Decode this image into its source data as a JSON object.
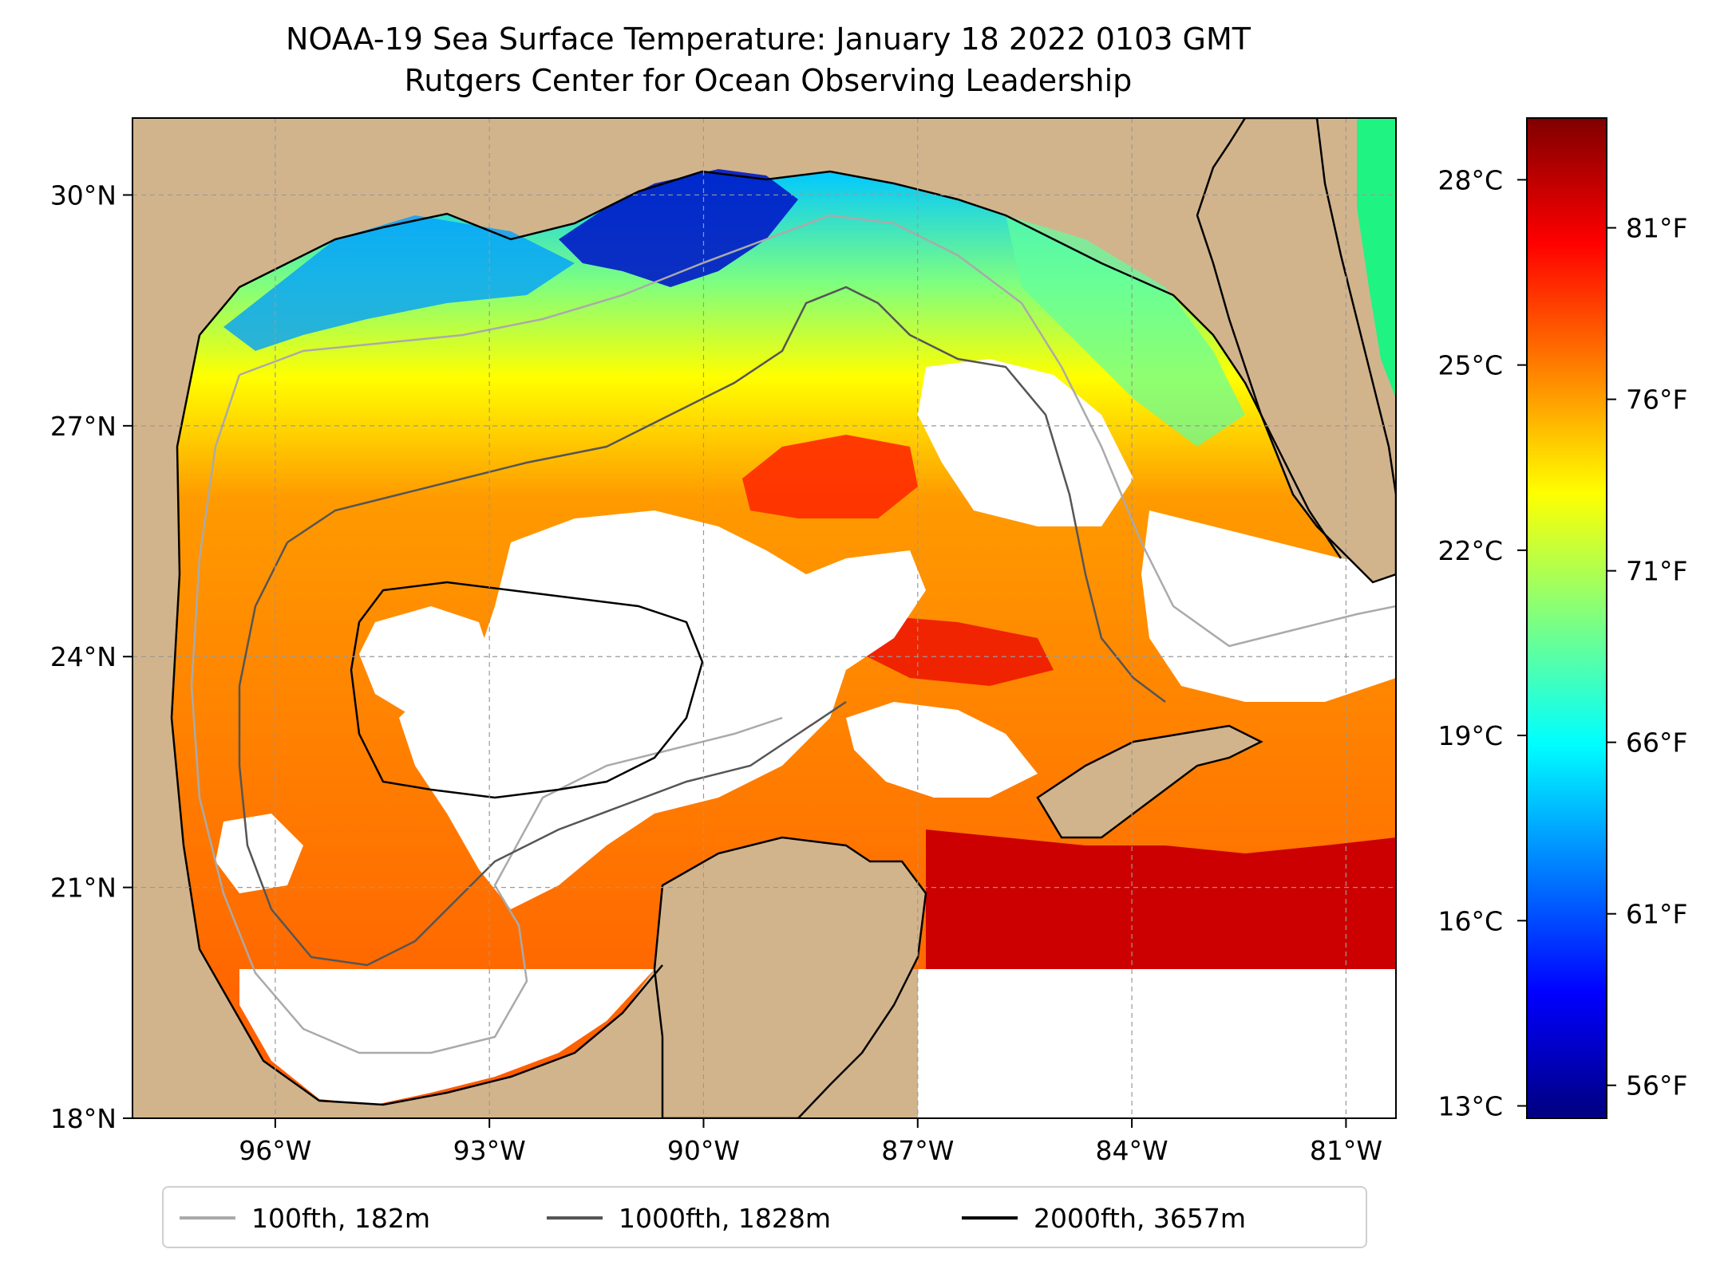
{
  "title": {
    "line1": "NOAA-19 Sea Surface Temperature: January 18 2022 0103 GMT",
    "line2": "Rutgers Center for Ocean Observing Leadership"
  },
  "map": {
    "extent": {
      "lon": [
        -98.0,
        -80.3
      ],
      "lat": [
        18.0,
        31.0
      ]
    },
    "lat_ticks": [
      {
        "value": 30,
        "label": "30°N"
      },
      {
        "value": 27,
        "label": "27°N"
      },
      {
        "value": 24,
        "label": "24°N"
      },
      {
        "value": 21,
        "label": "21°N"
      },
      {
        "value": 18,
        "label": "18°N"
      }
    ],
    "lon_ticks": [
      {
        "value": -96,
        "label": "96°W"
      },
      {
        "value": -93,
        "label": "93°W"
      },
      {
        "value": -90,
        "label": "90°W"
      },
      {
        "value": -87,
        "label": "87°W"
      },
      {
        "value": -84,
        "label": "84°W"
      },
      {
        "value": -81,
        "label": "81°W"
      }
    ],
    "colors": {
      "land": "#d2b48c",
      "cloud": "#ffffff",
      "grid": "#999999"
    }
  },
  "colorbar": {
    "range_c": [
      12.8,
      29.0
    ],
    "celsius_ticks": [
      {
        "value": 28,
        "label": "28°C"
      },
      {
        "value": 25,
        "label": "25°C"
      },
      {
        "value": 22,
        "label": "22°C"
      },
      {
        "value": 19,
        "label": "19°C"
      },
      {
        "value": 16,
        "label": "16°C"
      },
      {
        "value": 13,
        "label": "13°C"
      }
    ],
    "fahrenheit_ticks": [
      {
        "value": 81,
        "label": "81°F"
      },
      {
        "value": 76,
        "label": "76°F"
      },
      {
        "value": 71,
        "label": "71°F"
      },
      {
        "value": 66,
        "label": "66°F"
      },
      {
        "value": 61,
        "label": "61°F"
      },
      {
        "value": 56,
        "label": "56°F"
      }
    ],
    "colormap": [
      "#00007f",
      "#0000ff",
      "#007fff",
      "#00ffff",
      "#7fff7f",
      "#ffff00",
      "#ff7f00",
      "#ff0000",
      "#7f0000"
    ]
  },
  "legend": {
    "items": [
      {
        "label": "100fth, 182m",
        "color": "#aaaaaa"
      },
      {
        "label": "1000fth, 1828m",
        "color": "#555555"
      },
      {
        "label": "2000fth, 3657m",
        "color": "#000000"
      }
    ]
  }
}
